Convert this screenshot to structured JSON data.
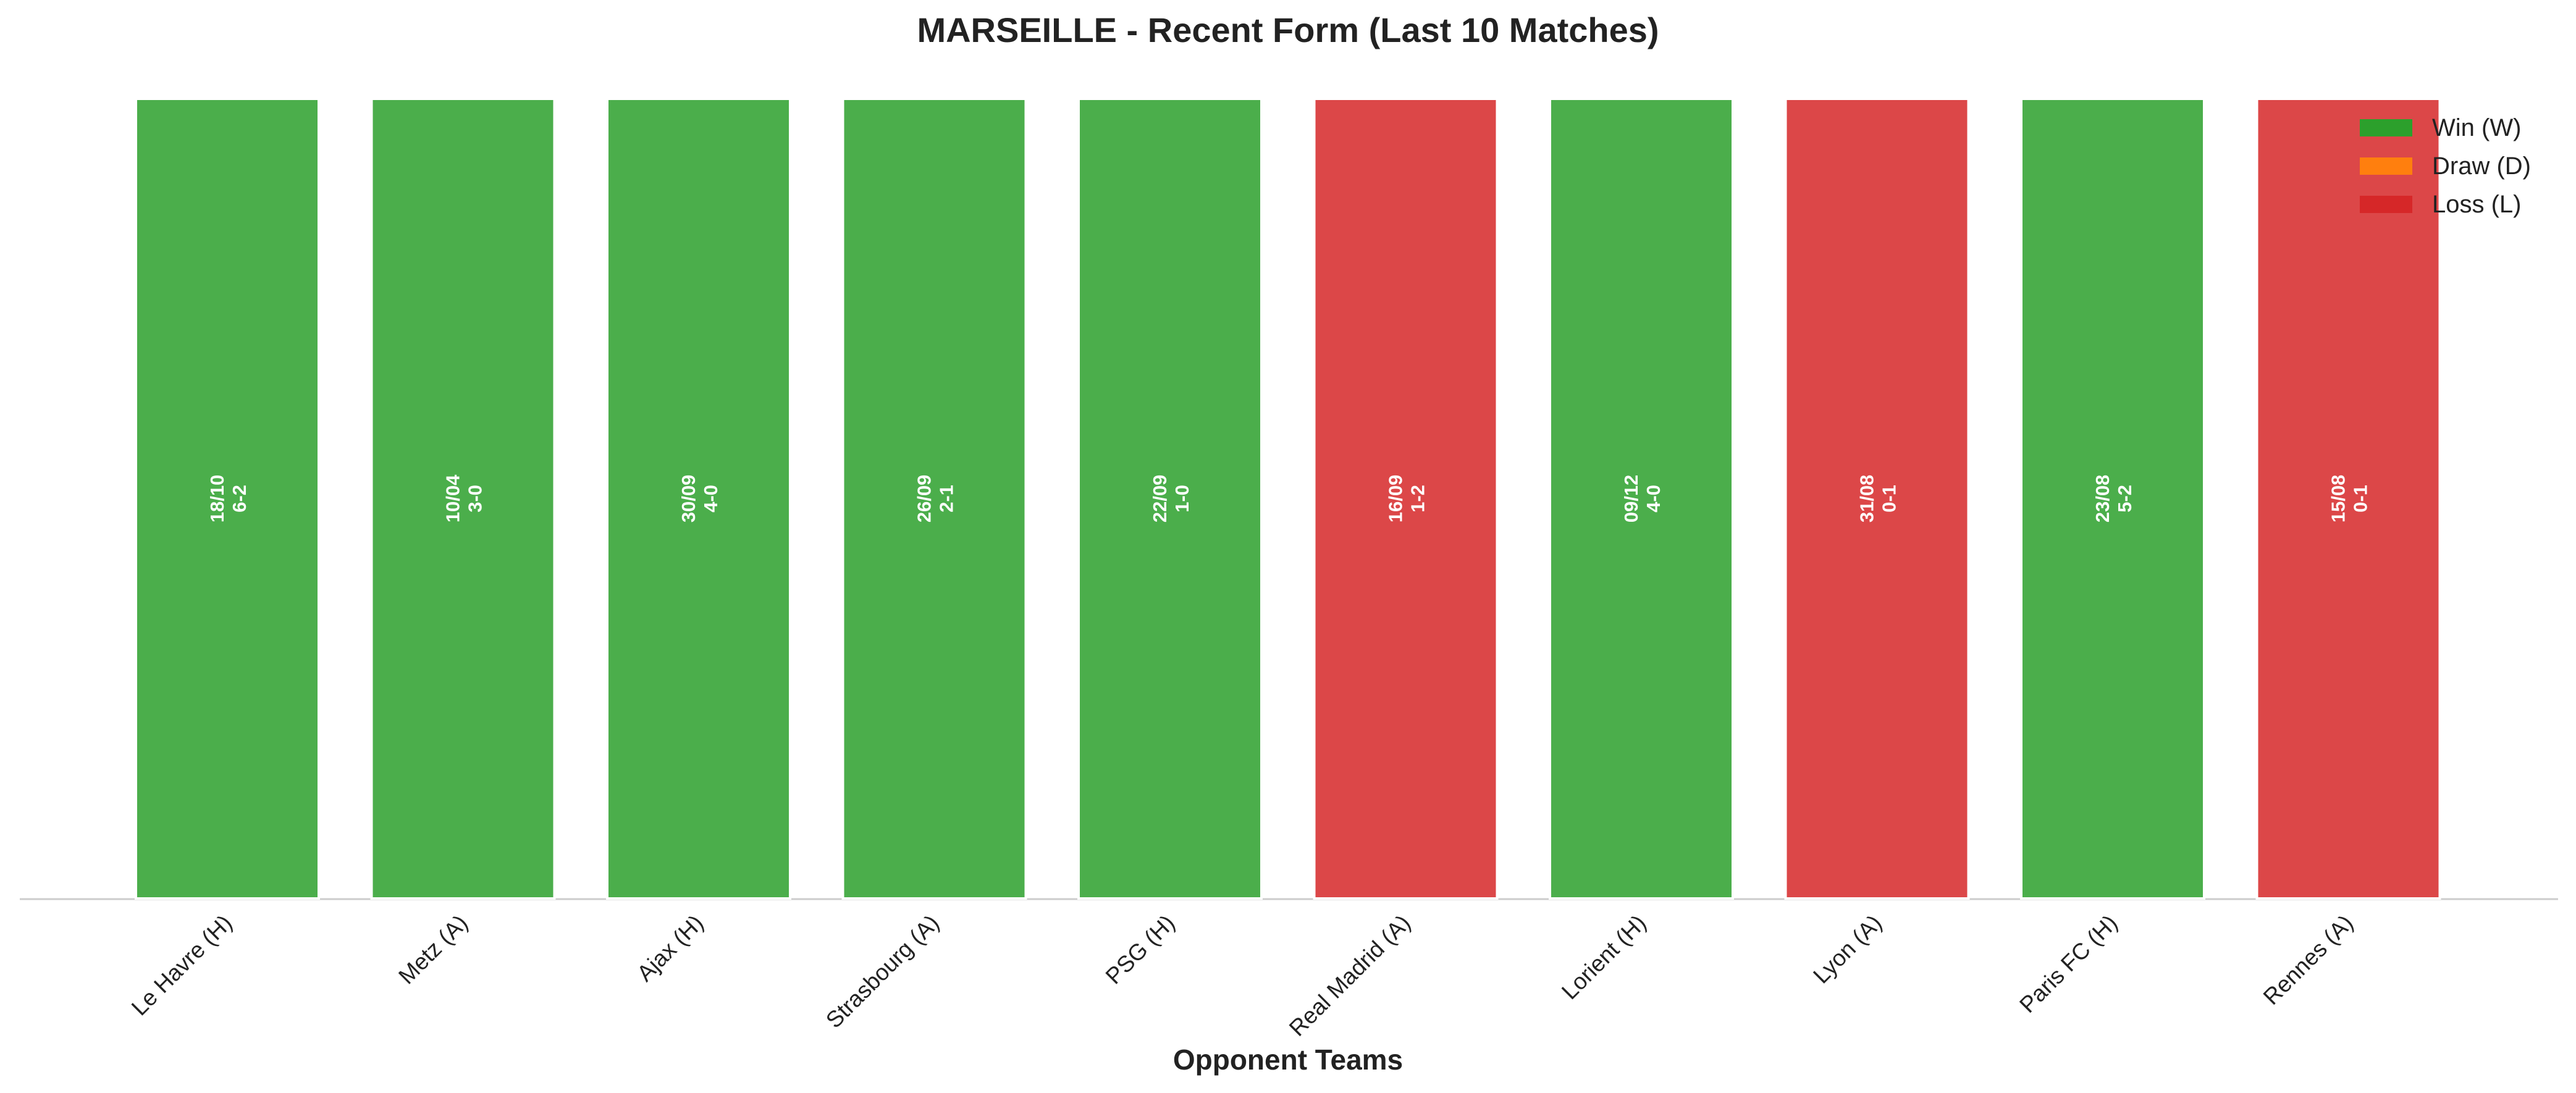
{
  "chart_data": {
    "type": "bar",
    "title": "MARSEILLE - Recent Form (Last 10 Matches)",
    "x_label": "Opponent Teams",
    "categories": [
      "Le Havre (H)",
      "Metz (A)",
      "Ajax (H)",
      "Strasbourg (A)",
      "PSG (H)",
      "Real Madrid (A)",
      "Lorient (H)",
      "Lyon (A)",
      "Paris FC (H)",
      "Rennes (A)"
    ],
    "values": [
      1,
      1,
      1,
      1,
      1,
      1,
      1,
      1,
      1,
      1
    ],
    "dates": [
      "18/10",
      "10/04",
      "30/09",
      "26/09",
      "22/09",
      "16/09",
      "09/12",
      "31/08",
      "23/08",
      "15/08"
    ],
    "scores": [
      "6-2",
      "3-0",
      "4-0",
      "2-1",
      "1-0",
      "1-2",
      "4-0",
      "0-1",
      "5-2",
      "0-1"
    ],
    "colors": [
      "#2ca02c",
      "#2ca02c",
      "#2ca02c",
      "#2ca02c",
      "#2ca02c",
      "#d62728",
      "#2ca02c",
      "#d62728",
      "#2ca02c",
      "#d62728"
    ],
    "ylim": [
      0,
      1
    ],
    "legend": "upper right",
    "series": [
      {
        "name": "Win (W)",
        "color": "#2ca02c"
      },
      {
        "name": "Draw (D)",
        "color": "#ff7f0e"
      },
      {
        "name": "Loss (L)",
        "color": "#d62728"
      }
    ]
  }
}
